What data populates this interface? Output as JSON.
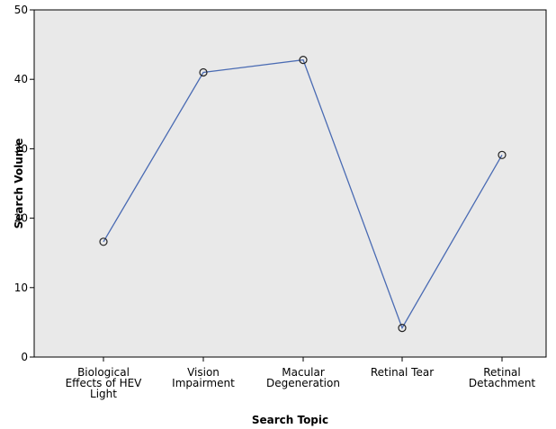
{
  "chart_data": {
    "type": "line",
    "categories": [
      [
        "Biological",
        "Effects of HEV",
        "Light"
      ],
      [
        "Vision",
        "Impairment"
      ],
      [
        "Macular",
        "Degeneration"
      ],
      [
        "Retinal Tear"
      ],
      [
        "Retinal",
        "Detachment"
      ]
    ],
    "values": [
      16.6,
      41.0,
      42.8,
      4.2,
      29.1
    ],
    "xlabel": "Search Topic",
    "ylabel": "Search Volume",
    "ylim": [
      0,
      50
    ],
    "yticks": [
      0,
      10,
      20,
      30,
      40,
      50
    ],
    "grid": false,
    "colors": {
      "line": "#4a6bb3",
      "marker_edge": "#222222",
      "plot_background": "#e9e9e9",
      "axis": "#000000"
    }
  }
}
